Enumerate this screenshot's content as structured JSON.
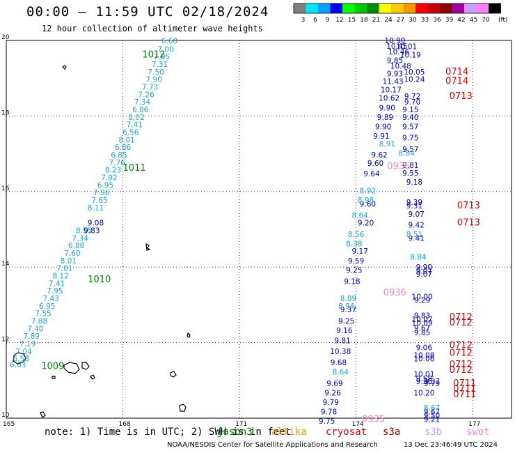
{
  "header": {
    "title": "00:00 — 11:59 UTC 02/18/2024",
    "subtitle": "12 hour collection of altimeter wave heights"
  },
  "colorbar": {
    "unit": "(ft)",
    "bins": [
      {
        "label": "3",
        "color": "#7f7f7f"
      },
      {
        "label": "6",
        "color": "#00e5ff"
      },
      {
        "label": "9",
        "color": "#00a0ff"
      },
      {
        "label": "12",
        "color": "#0000ff"
      },
      {
        "label": "15",
        "color": "#00ff00"
      },
      {
        "label": "18",
        "color": "#00c800"
      },
      {
        "label": "21",
        "color": "#008c00"
      },
      {
        "label": "24",
        "color": "#ffff00"
      },
      {
        "label": "27",
        "color": "#ffcc00"
      },
      {
        "label": "30",
        "color": "#ff9900"
      },
      {
        "label": "33",
        "color": "#ff0000"
      },
      {
        "label": "36",
        "color": "#c80000"
      },
      {
        "label": "39",
        "color": "#8b0000"
      },
      {
        "label": "42",
        "color": "#a000a0"
      },
      {
        "label": "45",
        "color": "#c8a0ff"
      },
      {
        "label": "70",
        "color": "#ff80ff"
      },
      {
        "label": "",
        "color": "#000000"
      }
    ]
  },
  "map": {
    "lon_ticks": [
      "165",
      "168",
      "171",
      "174",
      "177"
    ],
    "lat_ticks": [
      "20",
      "18",
      "16",
      "14",
      "12",
      "10"
    ],
    "lon_range": [
      165,
      178
    ],
    "lat_range": [
      10,
      20
    ],
    "tracks": [
      {
        "color": "#19a5d8",
        "points": [
          [
            169.2,
            19.92,
            "6.60"
          ],
          [
            169.1,
            19.7,
            "7.00"
          ],
          [
            169.0,
            19.5,
            "7.05"
          ],
          [
            168.95,
            19.3,
            "7.31"
          ],
          [
            168.85,
            19.1,
            "7.50"
          ],
          [
            168.8,
            18.9,
            "7.90"
          ],
          [
            168.7,
            18.7,
            "7.73"
          ],
          [
            168.6,
            18.5,
            "7.26"
          ],
          [
            168.5,
            18.3,
            "7.34"
          ],
          [
            168.45,
            18.1,
            "6.86"
          ],
          [
            168.35,
            17.9,
            "8.02"
          ],
          [
            168.3,
            17.7,
            "7.41"
          ],
          [
            168.2,
            17.5,
            "6.56"
          ],
          [
            168.1,
            17.3,
            "8.01"
          ],
          [
            168.0,
            17.1,
            "6.86"
          ],
          [
            167.9,
            16.9,
            "6.85"
          ],
          [
            167.85,
            16.7,
            "7.76"
          ],
          [
            167.75,
            16.5,
            "8.23"
          ],
          [
            167.65,
            16.3,
            "7.92"
          ],
          [
            167.55,
            16.1,
            "6.95"
          ],
          [
            167.45,
            15.9,
            "7.96"
          ],
          [
            167.4,
            15.7,
            "7.65"
          ],
          [
            167.3,
            15.5,
            "8.11"
          ],
          [
            167.0,
            14.9,
            "8.55"
          ],
          [
            166.9,
            14.7,
            "7.34"
          ],
          [
            166.8,
            14.5,
            "6.88"
          ],
          [
            166.7,
            14.3,
            "7.60"
          ],
          [
            166.6,
            14.1,
            "8.01"
          ],
          [
            166.5,
            13.9,
            "7.01"
          ],
          [
            166.4,
            13.7,
            "8.12"
          ],
          [
            166.3,
            13.5,
            "7.41"
          ],
          [
            166.25,
            13.3,
            "7.95"
          ],
          [
            166.15,
            13.1,
            "7.43"
          ],
          [
            166.05,
            12.9,
            "6.95"
          ],
          [
            165.95,
            12.7,
            "7.55"
          ],
          [
            165.85,
            12.5,
            "7.88"
          ],
          [
            165.75,
            12.3,
            "7.40"
          ],
          [
            165.65,
            12.1,
            "7.89"
          ],
          [
            165.55,
            11.9,
            "7.19"
          ],
          [
            165.45,
            11.7,
            "7.04"
          ],
          [
            165.38,
            11.5,
            "6.58"
          ],
          [
            165.3,
            11.35,
            "6.63"
          ]
        ]
      },
      {
        "color": "#0000cc",
        "points": [
          [
            167.3,
            15.1,
            "9.08"
          ],
          [
            167.2,
            14.9,
            "9.83"
          ]
        ]
      },
      {
        "color": "#0000cc",
        "points": [
          [
            175.0,
            19.93,
            "10.90"
          ],
          [
            175.05,
            19.78,
            "10.45"
          ],
          [
            175.1,
            19.63,
            "10.46"
          ],
          [
            175.0,
            19.4,
            "9.85"
          ],
          [
            175.15,
            19.25,
            "10.48"
          ],
          [
            175.0,
            19.05,
            "9.93"
          ],
          [
            174.95,
            18.85,
            "11.43"
          ],
          [
            174.9,
            18.63,
            "10.17"
          ],
          [
            174.85,
            18.4,
            "10.62"
          ],
          [
            174.8,
            18.15,
            "9.90"
          ],
          [
            174.75,
            17.9,
            "9.89"
          ],
          [
            174.7,
            17.65,
            "9.90"
          ],
          [
            174.65,
            17.4,
            "9.91"
          ],
          [
            174.6,
            16.9,
            "9.62"
          ],
          [
            174.5,
            16.68,
            "9.60"
          ],
          [
            174.4,
            16.4,
            "9.64"
          ],
          [
            174.3,
            15.6,
            "9.60"
          ],
          [
            174.25,
            15.1,
            "9.20"
          ],
          [
            174.1,
            14.35,
            "9.17"
          ],
          [
            174.0,
            14.1,
            "9.59"
          ],
          [
            173.95,
            13.85,
            "9.25"
          ],
          [
            173.9,
            13.55,
            "9.18"
          ],
          [
            173.8,
            12.8,
            "9.37"
          ],
          [
            173.75,
            12.5,
            "9.25"
          ],
          [
            173.7,
            12.25,
            "9.16"
          ],
          [
            173.65,
            11.98,
            "9.81"
          ],
          [
            173.6,
            11.7,
            "10.38"
          ],
          [
            173.55,
            11.4,
            "9.68"
          ],
          [
            173.45,
            10.85,
            "9.69"
          ],
          [
            173.4,
            10.6,
            "9.26"
          ],
          [
            173.35,
            10.35,
            "9.79"
          ],
          [
            173.3,
            10.1,
            "9.78"
          ],
          [
            173.25,
            9.85,
            "9.75"
          ]
        ]
      },
      {
        "color": "#0000cc",
        "points": [
          [
            175.3,
            19.77,
            "10.01"
          ],
          [
            175.4,
            19.55,
            "10.19"
          ],
          [
            175.5,
            19.1,
            "10.05"
          ],
          [
            175.5,
            18.9,
            "10.24"
          ],
          [
            175.45,
            18.45,
            "9.72"
          ],
          [
            175.45,
            18.3,
            "9.70"
          ],
          [
            175.4,
            18.1,
            "9.15"
          ],
          [
            175.4,
            17.9,
            "9.40"
          ],
          [
            175.4,
            17.65,
            "9.57"
          ],
          [
            175.4,
            17.35,
            "9.75"
          ],
          [
            175.4,
            17.05,
            "9.57"
          ],
          [
            175.4,
            16.62,
            "9.81"
          ],
          [
            175.4,
            16.42,
            "9.55"
          ],
          [
            175.5,
            16.18,
            "9.18"
          ],
          [
            175.5,
            15.65,
            "9.39"
          ],
          [
            175.5,
            15.55,
            "9.31"
          ],
          [
            175.55,
            15.33,
            "9.07"
          ],
          [
            175.55,
            15.05,
            "9.42"
          ],
          [
            175.55,
            14.7,
            "9.41"
          ],
          [
            175.75,
            13.93,
            "9.90"
          ],
          [
            175.75,
            13.83,
            "9.07"
          ],
          [
            175.75,
            13.75,
            "9.07"
          ],
          [
            175.7,
            13.15,
            "10.00"
          ],
          [
            175.7,
            13.05,
            "9.29"
          ],
          [
            175.7,
            12.65,
            "9.83"
          ],
          [
            175.7,
            12.55,
            "10.07"
          ],
          [
            175.7,
            12.45,
            "10.09"
          ],
          [
            175.7,
            12.32,
            "9.67"
          ],
          [
            175.7,
            12.2,
            "9.85"
          ],
          [
            175.75,
            11.8,
            "9.06"
          ],
          [
            175.75,
            11.6,
            "10.08"
          ],
          [
            175.75,
            11.5,
            "10.06"
          ],
          [
            175.75,
            11.1,
            "10.01"
          ],
          [
            175.75,
            10.98,
            "9.58"
          ],
          [
            175.75,
            10.9,
            "9.36"
          ],
          [
            175.75,
            10.6,
            "10.20"
          ],
          [
            175.95,
            10.9,
            "9.37"
          ],
          [
            175.95,
            10.85,
            "9.79"
          ],
          [
            175.95,
            10.1,
            "9.67"
          ],
          [
            175.95,
            10.0,
            "9.50"
          ],
          [
            175.95,
            9.9,
            "9.21"
          ]
        ]
      },
      {
        "color": "#19a5d8",
        "points": [
          [
            174.8,
            17.2,
            "8.91"
          ],
          [
            175.3,
            16.95,
            "8.84"
          ],
          [
            174.3,
            15.95,
            "8.92"
          ],
          [
            174.25,
            15.7,
            "8.98"
          ],
          [
            174.1,
            15.3,
            "8.64"
          ],
          [
            174.0,
            14.8,
            "8.56"
          ],
          [
            173.95,
            14.55,
            "8.38"
          ],
          [
            175.5,
            14.8,
            "8.51"
          ],
          [
            175.6,
            14.2,
            "8.84"
          ],
          [
            173.8,
            13.1,
            "8.89"
          ],
          [
            173.75,
            12.9,
            "8.94"
          ],
          [
            173.6,
            11.15,
            "8.64"
          ],
          [
            175.95,
            10.2,
            "8.67"
          ]
        ]
      }
    ],
    "labels": [
      {
        "lon": 168.5,
        "lat": 19.55,
        "text": "1012",
        "color": "#008000"
      },
      {
        "lon": 168.0,
        "lat": 16.55,
        "text": "1011",
        "color": "#008000"
      },
      {
        "lon": 167.1,
        "lat": 13.6,
        "text": "1010",
        "color": "#008000"
      },
      {
        "lon": 165.9,
        "lat": 11.3,
        "text": "1009",
        "color": "#008000"
      },
      {
        "lon": 176.3,
        "lat": 19.1,
        "text": "0714",
        "color": "#dd0000"
      },
      {
        "lon": 176.3,
        "lat": 18.85,
        "text": "0714",
        "color": "#dd0000"
      },
      {
        "lon": 176.4,
        "lat": 18.45,
        "text": "0713",
        "color": "#dd0000"
      },
      {
        "lon": 176.6,
        "lat": 15.55,
        "text": "0713",
        "color": "#dd0000"
      },
      {
        "lon": 176.6,
        "lat": 15.1,
        "text": "0713",
        "color": "#dd0000"
      },
      {
        "lon": 176.4,
        "lat": 12.6,
        "text": "0712",
        "color": "#dd0000"
      },
      {
        "lon": 176.4,
        "lat": 12.45,
        "text": "0712",
        "color": "#dd0000"
      },
      {
        "lon": 176.4,
        "lat": 11.85,
        "text": "0712",
        "color": "#dd0000"
      },
      {
        "lon": 176.4,
        "lat": 11.65,
        "text": "0712",
        "color": "#dd0000"
      },
      {
        "lon": 176.4,
        "lat": 11.35,
        "text": "0712",
        "color": "#dd0000"
      },
      {
        "lon": 176.4,
        "lat": 11.2,
        "text": "0712",
        "color": "#dd0000"
      },
      {
        "lon": 176.5,
        "lat": 10.85,
        "text": "0711",
        "color": "#dd0000"
      },
      {
        "lon": 176.5,
        "lat": 10.7,
        "text": "0711",
        "color": "#dd0000"
      },
      {
        "lon": 176.5,
        "lat": 10.55,
        "text": "0711",
        "color": "#dd0000"
      },
      {
        "lon": 174.8,
        "lat": 16.6,
        "text": "0936",
        "color": "#ee88cc"
      },
      {
        "lon": 174.7,
        "lat": 13.25,
        "text": "0936",
        "color": "#ee88cc"
      },
      {
        "lon": 174.15,
        "lat": 9.9,
        "text": "0935",
        "color": "#ee88cc"
      }
    ]
  },
  "footer": {
    "note": "note: 1) Time is in UTC; 2) SWH is in feet",
    "missions": [
      {
        "name": "jason3",
        "color": "#008000"
      },
      {
        "name": "altika",
        "color": "#ff9900"
      },
      {
        "name": "cryosat",
        "color": "#dd0000"
      },
      {
        "name": "s3a",
        "color": "#a00000"
      },
      {
        "name": "s3b",
        "color": "#c8a0ff"
      },
      {
        "name": "swot",
        "color": "#ff80ff"
      }
    ],
    "credit": "NOAA/NESDIS Center for Satellite Applications and Research",
    "date": "13 Dec 23:46:49 UTC 2024"
  }
}
